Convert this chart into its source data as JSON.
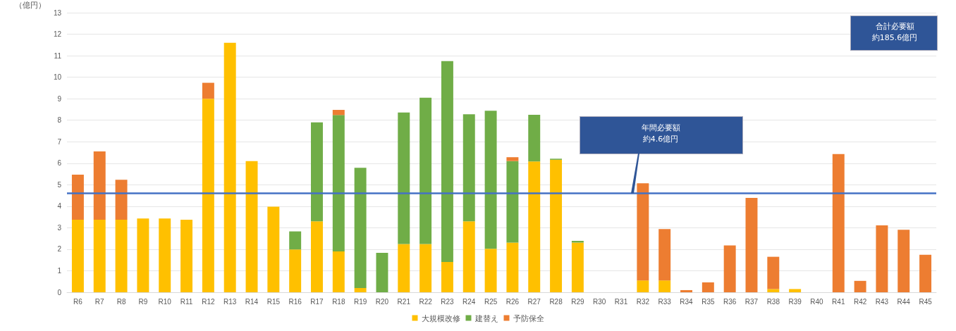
{
  "chart_data": {
    "type": "bar",
    "stacked": true,
    "ylabel": "（億円）",
    "categories": [
      "R6",
      "R7",
      "R8",
      "R9",
      "R10",
      "R11",
      "R12",
      "R13",
      "R14",
      "R15",
      "R16",
      "R17",
      "R18",
      "R19",
      "R20",
      "R21",
      "R22",
      "R23",
      "R24",
      "R25",
      "R26",
      "R27",
      "R28",
      "R29",
      "R30",
      "R31",
      "R32",
      "R33",
      "R34",
      "R35",
      "R36",
      "R37",
      "R38",
      "R39",
      "R40",
      "R41",
      "R42",
      "R43",
      "R44",
      "R45"
    ],
    "series": [
      {
        "name": "大規模改修",
        "color": "#ffc000",
        "values": [
          3.37,
          3.37,
          3.37,
          3.43,
          3.43,
          3.37,
          9.0,
          11.6,
          6.1,
          3.98,
          1.99,
          3.3,
          1.9,
          0.2,
          0,
          2.24,
          2.24,
          1.41,
          3.3,
          2.02,
          2.31,
          6.08,
          6.16,
          2.31,
          0,
          0,
          0.55,
          0.55,
          0,
          0,
          0,
          0,
          0.15,
          0.15,
          0,
          0,
          0,
          0,
          0,
          0
        ]
      },
      {
        "name": "建替え",
        "color": "#70ad47",
        "values": [
          0,
          0,
          0,
          0,
          0,
          0,
          0,
          0,
          0,
          0,
          0.84,
          4.6,
          6.34,
          5.59,
          1.83,
          6.12,
          6.81,
          9.34,
          4.98,
          6.42,
          3.79,
          2.17,
          0.05,
          0.08,
          0,
          0,
          0,
          0,
          0,
          0,
          0,
          0,
          0,
          0,
          0,
          0,
          0,
          0,
          0,
          0
        ]
      },
      {
        "name": "予防保全",
        "color": "#ed7d31",
        "values": [
          2.1,
          3.18,
          1.86,
          0,
          0,
          0,
          0.74,
          0,
          0,
          0,
          0,
          0,
          0.24,
          0,
          0,
          0,
          0,
          0,
          0,
          0,
          0.18,
          0,
          0,
          0,
          0,
          0,
          4.52,
          2.39,
          0.1,
          0.46,
          2.18,
          4.39,
          1.5,
          0,
          0,
          6.43,
          0.53,
          3.11,
          2.91,
          1.74
        ]
      }
    ],
    "ylim": [
      0,
      13
    ],
    "yticks": [
      0,
      1,
      2,
      3,
      4,
      5,
      6,
      7,
      8,
      9,
      10,
      11,
      12,
      13
    ],
    "grid": "y",
    "legend": "bottom",
    "ref_lines": [
      {
        "axis": "y",
        "value": 4.6,
        "label": "年間必要額約4.6億円",
        "color": "#4472c4"
      }
    ],
    "annotations": [
      "合計必要額約185.6億円"
    ]
  }
}
